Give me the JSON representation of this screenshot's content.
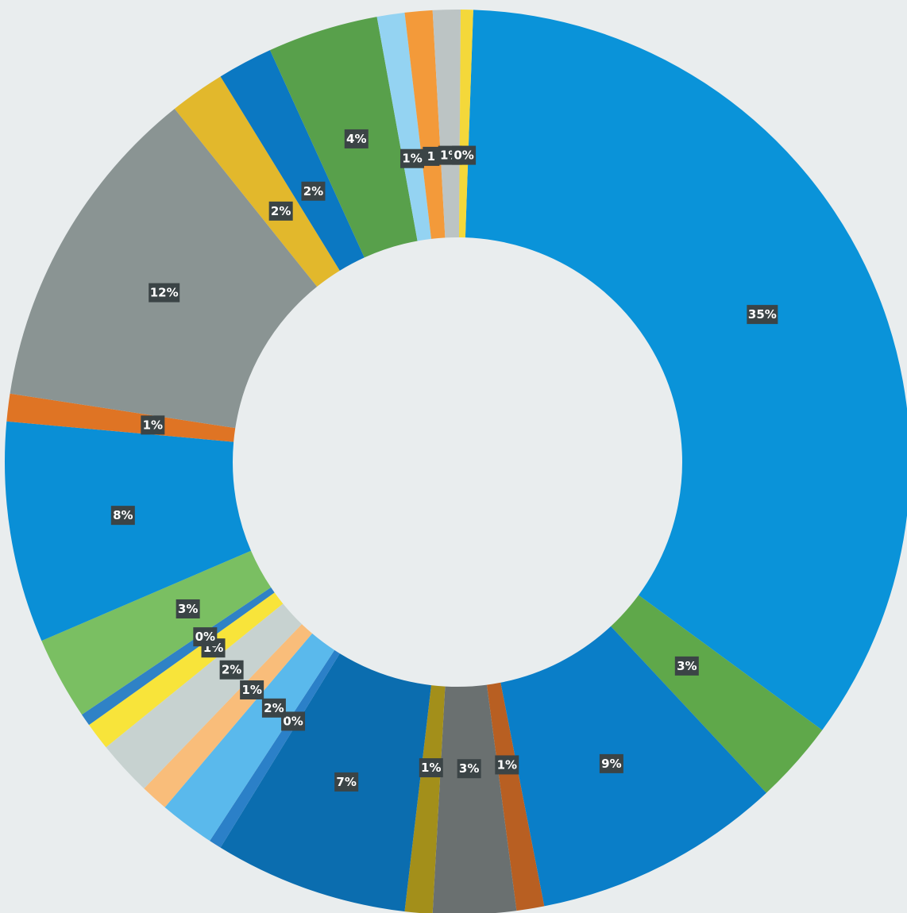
{
  "chart_data": {
    "type": "pie",
    "donut": true,
    "title": "",
    "legend": "none",
    "slices": [
      {
        "value": 35,
        "label": "35%",
        "color": "#0a93d9"
      },
      {
        "value": 3,
        "label": "3%",
        "color": "#5fa84a"
      },
      {
        "value": 9,
        "label": "9%",
        "color": "#0a7ec8"
      },
      {
        "value": 1,
        "label": "1%",
        "color": "#b85f22"
      },
      {
        "value": 3,
        "label": "3%",
        "color": "#6a7070"
      },
      {
        "value": 1,
        "label": "1%",
        "color": "#a38f1a"
      },
      {
        "value": 7,
        "label": "7%",
        "color": "#0b6daf"
      },
      {
        "value": 0,
        "label": "0%",
        "color": "#2b80c8"
      },
      {
        "value": 2,
        "label": "2%",
        "color": "#5ab9ec"
      },
      {
        "value": 1,
        "label": "1%",
        "color": "#f9bd7a"
      },
      {
        "value": 2,
        "label": "2%",
        "color": "#c7d2d0"
      },
      {
        "value": 1,
        "label": "1%",
        "color": "#f8e43a"
      },
      {
        "value": 0,
        "label": "0%",
        "color": "#2f82c6"
      },
      {
        "value": 3,
        "label": "3%",
        "color": "#7abf62"
      },
      {
        "value": 8,
        "label": "8%",
        "color": "#0a8fd6"
      },
      {
        "value": 1,
        "label": "1%",
        "color": "#df7424"
      },
      {
        "value": 12,
        "label": "12%",
        "color": "#8a9493"
      },
      {
        "value": 2,
        "label": "2%",
        "color": "#e2b82c"
      },
      {
        "value": 2,
        "label": "2%",
        "color": "#0b78c2"
      },
      {
        "value": 4,
        "label": "4%",
        "color": "#58a04b"
      },
      {
        "value": 1,
        "label": "1%",
        "color": "#94d3f2"
      },
      {
        "value": 1,
        "label": "1",
        "color": "#f39a3a"
      },
      {
        "value": 1,
        "label": "1%",
        "color": "#bcc4c4"
      },
      {
        "value": 0,
        "label": "0%",
        "color": "#f4d83a"
      }
    ]
  }
}
